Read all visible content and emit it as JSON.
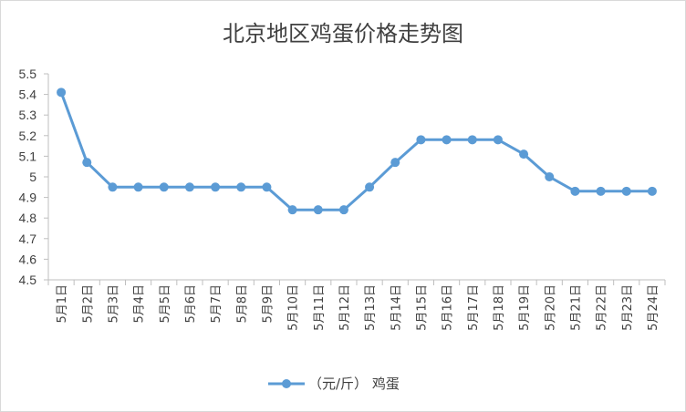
{
  "chart_data": {
    "type": "line",
    "title": "北京地区鸡蛋价格走势图",
    "xlabel": "",
    "ylabel": "",
    "categories": [
      "5月1日",
      "5月2日",
      "5月3日",
      "5月4日",
      "5月5日",
      "5月6日",
      "5月7日",
      "5月8日",
      "5月9日",
      "5月10日",
      "5月11日",
      "5月12日",
      "5月13日",
      "5月14日",
      "5月15日",
      "5月16日",
      "5月17日",
      "5月18日",
      "5月19日",
      "5月20日",
      "5月21日",
      "5月22日",
      "5月23日",
      "5月24日"
    ],
    "series": [
      {
        "name": "（元/斤） 鸡蛋",
        "values": [
          5.41,
          5.07,
          4.95,
          4.95,
          4.95,
          4.95,
          4.95,
          4.95,
          4.95,
          4.84,
          4.84,
          4.84,
          4.95,
          5.07,
          5.18,
          5.18,
          5.18,
          5.18,
          5.11,
          5.0,
          4.93,
          4.93,
          4.93,
          4.93
        ],
        "color": "#5b9bd5"
      }
    ],
    "ylim": [
      4.5,
      5.5
    ],
    "yticks": [
      "4.5",
      "4.6",
      "4.7",
      "4.8",
      "4.9",
      "5",
      "5.1",
      "5.2",
      "5.3",
      "5.4",
      "5.5"
    ],
    "grid": false,
    "legend": "bottom"
  }
}
